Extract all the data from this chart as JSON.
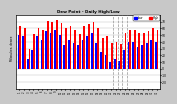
{
  "title": "Dew Point - Daily High/Low",
  "left_label": "Milwaukee, dewee",
  "background_color": "#c8c8c8",
  "plot_bg": "#ffffff",
  "ylim": [
    -30,
    80
  ],
  "yticks": [
    -20,
    -10,
    0,
    10,
    20,
    30,
    40,
    50,
    60,
    70
  ],
  "ytick_labels": [
    "-20",
    "-10",
    "0",
    "10",
    "20",
    "30",
    "40",
    "50",
    "60",
    "70"
  ],
  "days": [
    1,
    2,
    3,
    4,
    5,
    6,
    7,
    8,
    9,
    10,
    11,
    12,
    13,
    14,
    15,
    16,
    17,
    18,
    19,
    20,
    21,
    22,
    23,
    24,
    25,
    26,
    27,
    28,
    29,
    30,
    31
  ],
  "high": [
    63,
    60,
    30,
    52,
    60,
    58,
    71,
    70,
    73,
    68,
    60,
    63,
    58,
    52,
    63,
    66,
    70,
    60,
    46,
    48,
    38,
    40,
    36,
    53,
    58,
    58,
    53,
    53,
    56,
    60,
    58
  ],
  "low": [
    50,
    48,
    15,
    28,
    48,
    43,
    56,
    53,
    58,
    50,
    35,
    43,
    38,
    35,
    43,
    48,
    53,
    38,
    25,
    20,
    10,
    15,
    12,
    28,
    40,
    40,
    33,
    35,
    38,
    43,
    40
  ],
  "dashed_day_indices": [
    21,
    22,
    23,
    24
  ],
  "high_color": "#ff0000",
  "low_color": "#0000ff",
  "bar_width": 0.38,
  "legend_labels": [
    "Low",
    "High"
  ]
}
